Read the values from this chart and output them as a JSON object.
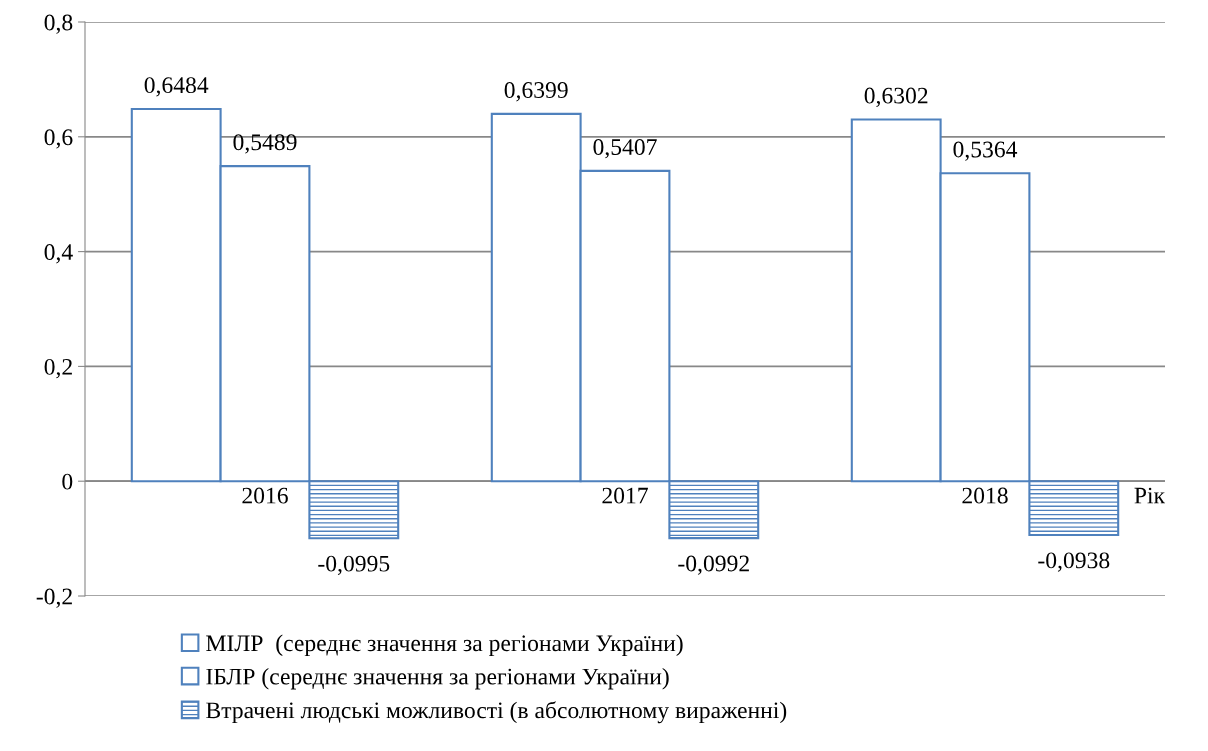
{
  "chart_data": {
    "type": "bar",
    "categories": [
      "2016",
      "2017",
      "2018"
    ],
    "xlabel": "Рік",
    "series": [
      {
        "name": "МІЛР  (середнє значення за регіонами України)",
        "color": "#4f81bd",
        "values": [
          0.6484,
          0.6399,
          0.6302
        ],
        "value_labels": [
          "0,6484",
          "0,6399",
          "0,6302"
        ]
      },
      {
        "name": "ІБЛР (середнє значення за регіонами України)",
        "color": "#4f81bd",
        "values": [
          0.5489,
          0.5407,
          0.5364
        ],
        "value_labels": [
          "0,5489",
          "0,5407",
          "0,5364"
        ]
      },
      {
        "name": "Втрачені людські можливості (в абсолютному вираженні)",
        "color": "#4f81bd",
        "values": [
          -0.0995,
          -0.0992,
          -0.0938
        ],
        "value_labels": [
          "-0,0995",
          "-0,0992",
          "-0,0938"
        ]
      }
    ],
    "ylim": [
      -0.2,
      0.8
    ],
    "yticks": [
      {
        "value": -0.2,
        "label": "-0,2"
      },
      {
        "value": 0,
        "label": "0"
      },
      {
        "value": 0.2,
        "label": "0,2"
      },
      {
        "value": 0.4,
        "label": "0,4"
      },
      {
        "value": 0.6,
        "label": "0,6"
      },
      {
        "value": 0.8,
        "label": "0,8"
      }
    ],
    "grid": "y",
    "legend": "bottom"
  }
}
